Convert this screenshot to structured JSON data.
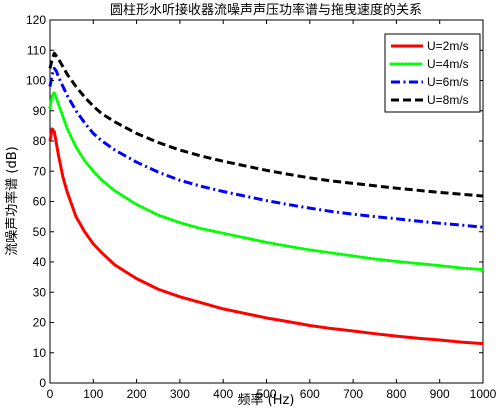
{
  "chart_data": {
    "type": "line",
    "title": "圆柱形水听接收器流噪声声压功率谱与拖曳速度的关系",
    "xlabel": "频率 (Hz)",
    "ylabel": "流噪声功率谱 (dB)",
    "xlim": [
      0,
      1000
    ],
    "ylim": [
      0,
      120
    ],
    "xticks": [
      0,
      100,
      200,
      300,
      400,
      500,
      600,
      700,
      800,
      900,
      1000
    ],
    "yticks": [
      0,
      10,
      20,
      30,
      40,
      50,
      60,
      70,
      80,
      90,
      100,
      110,
      120
    ],
    "grid": false,
    "legend_position": "top-right",
    "x": [
      0,
      5,
      10,
      15,
      20,
      30,
      40,
      50,
      60,
      80,
      100,
      120,
      150,
      200,
      250,
      300,
      350,
      400,
      450,
      500,
      550,
      600,
      650,
      700,
      750,
      800,
      850,
      900,
      950,
      1000
    ],
    "series": [
      {
        "name": "U=2m/s",
        "color": "#ff0000",
        "style": "solid",
        "values": [
          80,
          84,
          83,
          79,
          75,
          68,
          63,
          59,
          55,
          50,
          46,
          43,
          39,
          34.5,
          31,
          28.5,
          26.5,
          24.5,
          23,
          21.5,
          20.3,
          19,
          18,
          17.2,
          16.3,
          15.5,
          14.8,
          14.2,
          13.5,
          13
        ]
      },
      {
        "name": "U=4m/s",
        "color": "#00ff00",
        "style": "dotted",
        "values": [
          91,
          95,
          96,
          94,
          92,
          88,
          84,
          81,
          78,
          73.5,
          70,
          67,
          63.5,
          59,
          55.5,
          53,
          51,
          49.5,
          48,
          46.5,
          45.2,
          44,
          43,
          42,
          41,
          40.2,
          39.5,
          38.8,
          38,
          37.5
        ]
      },
      {
        "name": "U=6m/s",
        "color": "#0000ff",
        "style": "dashdot",
        "values": [
          98,
          102,
          104,
          103,
          101,
          98,
          95,
          92.5,
          90,
          86,
          82.5,
          80,
          77,
          73,
          69.7,
          67,
          65,
          63.3,
          61.8,
          60.3,
          59,
          57.8,
          56.7,
          55.8,
          55,
          54.3,
          53.5,
          52.8,
          52.2,
          51.5
        ]
      },
      {
        "name": "U=8m/s",
        "color": "#000000",
        "style": "dashed",
        "values": [
          104,
          107,
          109,
          108,
          107,
          104.5,
          102,
          100,
          98,
          94.5,
          91.5,
          89,
          86.3,
          82.5,
          79.5,
          77,
          75,
          73.3,
          71.8,
          70.3,
          69,
          67.8,
          66.8,
          66,
          65.2,
          64.4,
          63.7,
          63,
          62.4,
          61.8
        ]
      }
    ]
  }
}
